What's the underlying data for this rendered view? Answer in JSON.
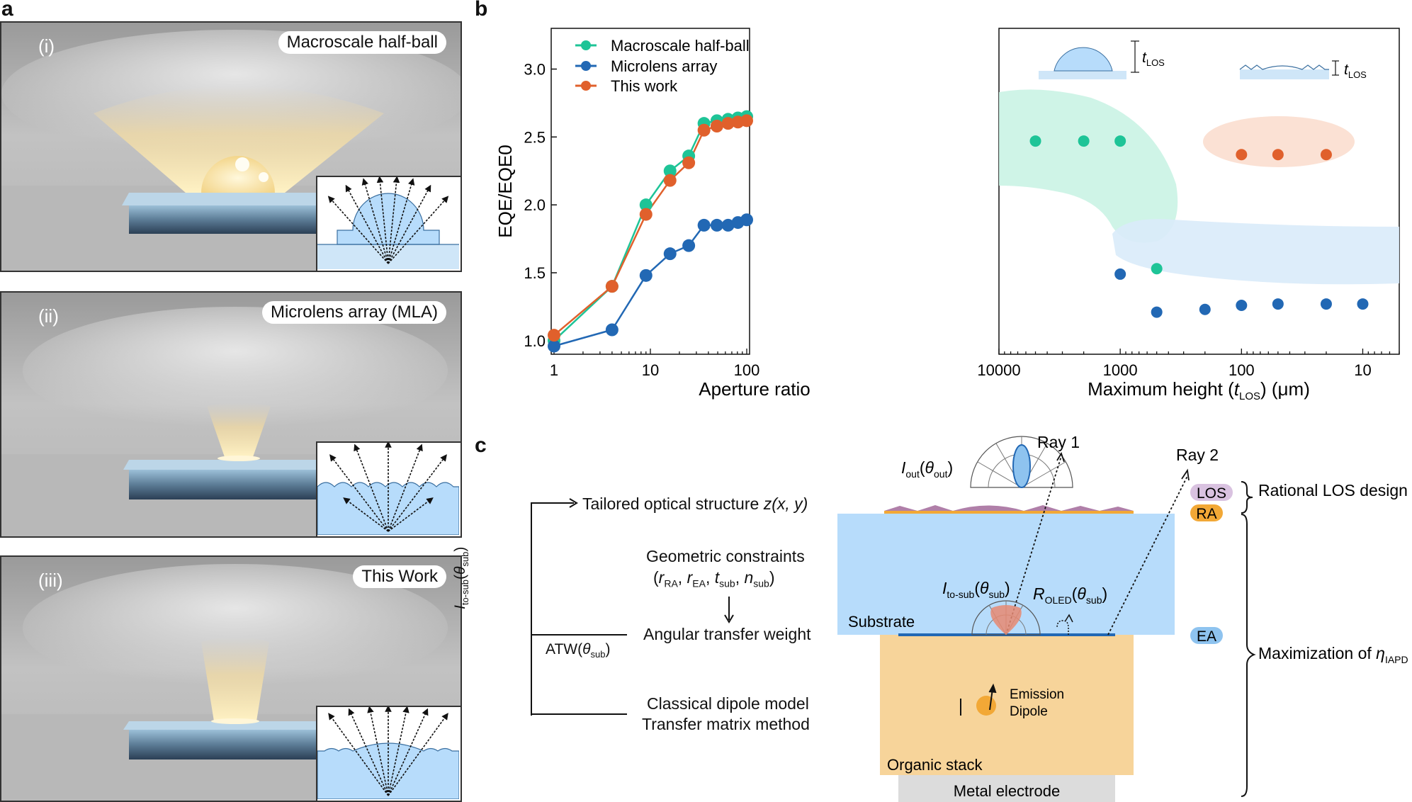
{
  "panel_labels": {
    "a": "a",
    "b": "b",
    "c": "c"
  },
  "panel_a": {
    "scenes": [
      {
        "roman": "(i)",
        "title": "Macroscale half-ball"
      },
      {
        "roman": "(ii)",
        "title": "Microlens array (MLA)"
      },
      {
        "roman": "(iii)",
        "title": "This Work"
      }
    ]
  },
  "chart_data": [
    {
      "type": "line",
      "xscale": "log",
      "xlabel": "Aperture ratio",
      "ylabel": "EQE/EQE0",
      "xlim": [
        1,
        100
      ],
      "ylim": [
        0.9,
        3.3
      ],
      "xticks": [
        1,
        10,
        100
      ],
      "yticks": [
        "1.0",
        "1.5",
        "2.0",
        "2.5",
        "3.0"
      ],
      "legend_position": "top-left",
      "x": [
        1,
        4,
        9,
        16,
        25,
        36,
        49,
        64,
        81,
        100
      ],
      "series": [
        {
          "name": "Macroscale half-ball",
          "color": "#1ec497",
          "values": [
            1.0,
            1.4,
            2.0,
            2.25,
            2.36,
            2.6,
            2.62,
            2.63,
            2.64,
            2.65
          ]
        },
        {
          "name": "Microlens array",
          "color": "#2268b4",
          "values": [
            0.96,
            1.08,
            1.48,
            1.64,
            1.7,
            1.85,
            1.85,
            1.85,
            1.87,
            1.89
          ]
        },
        {
          "name": "This work",
          "color": "#e0602c",
          "values": [
            1.04,
            1.4,
            1.93,
            2.18,
            2.31,
            2.55,
            2.58,
            2.6,
            2.61,
            2.62
          ]
        }
      ]
    },
    {
      "type": "scatter",
      "xscale": "log",
      "xreversed": true,
      "xlabel_main": "Maximum height (",
      "xlabel_var": "t",
      "xlabel_sub": "LOS",
      "xlabel_unit": ") (μm)",
      "xlim": [
        10000,
        5
      ],
      "xticks": [
        "10000",
        "1000",
        "100",
        "10"
      ],
      "inset_label_var": "t",
      "inset_label_sub": "LOS",
      "series": [
        {
          "name": "Macroscale half-ball",
          "color": "#1ec497",
          "x": [
            5000,
            2000,
            1000,
            500
          ],
          "y": [
            2.47,
            2.47,
            2.47,
            1.53
          ]
        },
        {
          "name": "Microlens array",
          "color": "#2268b4",
          "x": [
            1000,
            500,
            200,
            100,
            50,
            20,
            10
          ],
          "y": [
            1.49,
            1.21,
            1.23,
            1.26,
            1.27,
            1.27,
            1.27
          ]
        },
        {
          "name": "This work",
          "color": "#e0602c",
          "x": [
            100,
            50,
            20
          ],
          "y": [
            2.37,
            2.37,
            2.37
          ]
        }
      ]
    }
  ],
  "panel_c": {
    "flow": {
      "tailored_main": "Tailored optical structure ",
      "tailored_math": "z(x, y)",
      "geom_line1": "Geometric constraints",
      "geom_r1": "r",
      "geom_r1_sub": "RA",
      "geom_r2": "r",
      "geom_r2_sub": "EA",
      "geom_t": "t",
      "geom_t_sub": "sub",
      "geom_n": "n",
      "geom_n_sub": "sub",
      "atw_label": "Angular transfer weight",
      "atw_symbol": "ATW(",
      "atw_theta": "θ",
      "atw_sub": "sub",
      "classical_line1": "Classical dipole model",
      "classical_line2": "Transfer matrix method",
      "ito_main": "I",
      "ito_sub": "to-sub",
      "ito_theta": "θ",
      "ito_theta_sub": "sub"
    },
    "diagram": {
      "ray1": "Ray 1",
      "ray2": "Ray 2",
      "iout": "I",
      "iout_sub": "out",
      "iout_theta": "θ",
      "iout_theta_sub": "out",
      "itosub": "I",
      "itosub_sub": "to-sub",
      "itosub_theta": "θ",
      "itosub_theta_sub": "sub",
      "roled": "R",
      "roled_sub": "OLED",
      "roled_theta": "θ",
      "roled_theta_sub": "sub",
      "substrate": "Substrate",
      "emission_line1": "Emission",
      "emission_line2": "Dipole",
      "organic": "Organic stack",
      "metal": "Metal electrode",
      "los": "LOS",
      "ra": "RA",
      "ea": "EA",
      "rational": "Rational LOS design",
      "maximization": "Maximization of ",
      "eta": "η",
      "eta_sub": "IAPD"
    },
    "colors": {
      "substrate": "#b7dcfb",
      "organic": "#f7d49a",
      "metal": "#dcdcdc",
      "los": "#b07fa8",
      "ra": "#f2a836",
      "ea": "#2268b4"
    }
  }
}
